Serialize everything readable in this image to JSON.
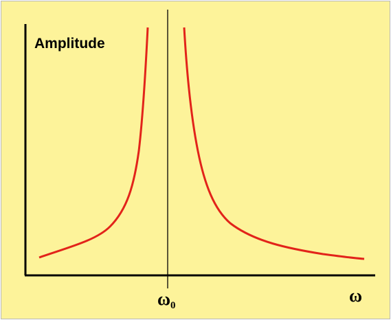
{
  "y_axis_label": "Amplitude",
  "x_axis_label": "ω",
  "resonance_label": {
    "symbol": "ω",
    "subscript": "0"
  }
}
